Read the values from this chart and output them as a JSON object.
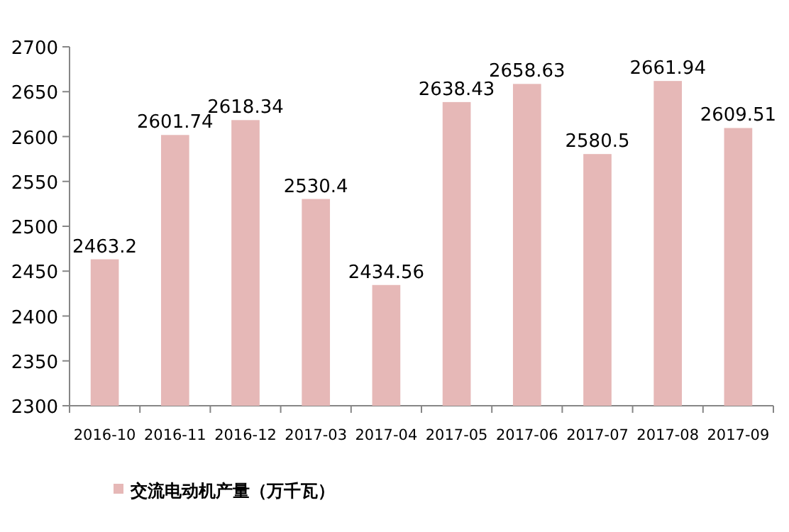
{
  "chart_data": {
    "type": "bar",
    "categories": [
      "2016-10",
      "2016-11",
      "2016-12",
      "2017-03",
      "2017-04",
      "2017-05",
      "2017-06",
      "2017-07",
      "2017-08",
      "2017-09"
    ],
    "series": [
      {
        "name": "交流电动机产量（万千瓦）",
        "color": "#e6b8b7",
        "values": [
          2463.2,
          2601.74,
          2618.34,
          2530.4,
          2434.56,
          2638.43,
          2658.63,
          2580.5,
          2661.94,
          2609.51
        ]
      }
    ],
    "ylim": [
      2300,
      2700
    ],
    "yticks": [
      2300,
      2350,
      2400,
      2450,
      2500,
      2550,
      2600,
      2650,
      2700
    ],
    "data_labels": true,
    "legend": "bottom",
    "grid": false
  }
}
